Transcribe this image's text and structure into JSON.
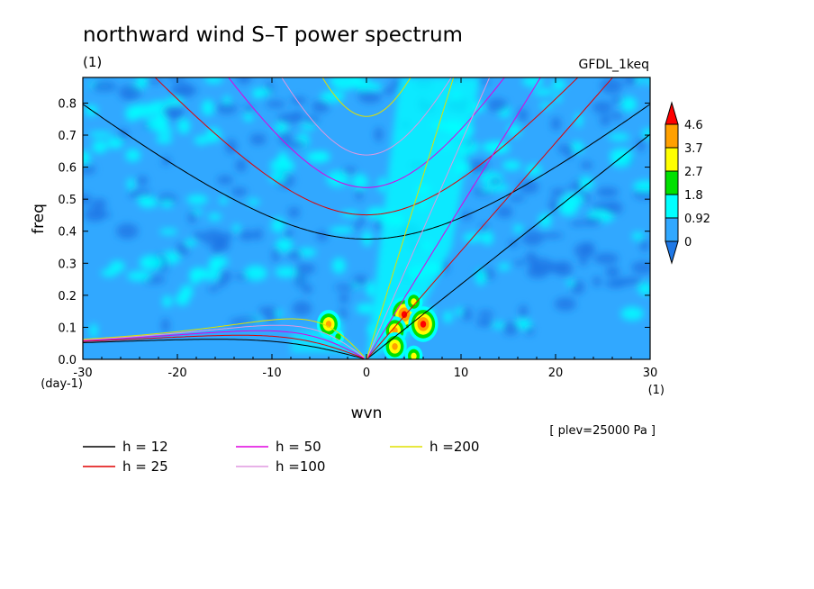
{
  "chart_data": {
    "type": "heatmap",
    "title": "northward wind S–T power spectrum",
    "subtitle_left": "(1)",
    "subtitle_right": "GFDL_1keq",
    "xlabel": "wvn",
    "ylabel": "freq",
    "x_unit_label": "(1)",
    "y_unit_label": "(day-1)",
    "xlim": [
      -30,
      30
    ],
    "ylim": [
      0,
      0.88
    ],
    "x_ticks": [
      -30,
      -20,
      -10,
      0,
      10,
      20,
      30
    ],
    "x_tick_labels": [
      "-30",
      "-20",
      "-10",
      "0",
      "10",
      "20",
      "30"
    ],
    "y_ticks": [
      0,
      0.1,
      0.2,
      0.3,
      0.4,
      0.5,
      0.6,
      0.7,
      0.8
    ],
    "y_tick_labels": [
      "0.0",
      "0.1",
      "0.2",
      "0.3",
      "0.4",
      "0.5",
      "0.6",
      "0.7",
      "0.8"
    ],
    "colorbar": {
      "levels": [
        "0",
        "0.92",
        "1.8",
        "2.7",
        "3.7",
        "4.6"
      ],
      "colors": [
        "#1f78e6",
        "#31a8ff",
        "#00ffff",
        "#00e000",
        "#ffff00",
        "#ffa000",
        "#ff0000"
      ]
    },
    "annotation": "[ plev=25000 Pa ]",
    "dispersion_curves": [
      {
        "label": "h = 12",
        "h": 12,
        "color": "#000000"
      },
      {
        "label": "h = 25",
        "h": 25,
        "color": "#e00000"
      },
      {
        "label": "h = 50",
        "h": 50,
        "color": "#e000e0"
      },
      {
        "label": "h =100",
        "h": 100,
        "color": "#e098e0"
      },
      {
        "label": "h =200",
        "h": 200,
        "color": "#e0e000"
      }
    ],
    "power_peaks": [
      {
        "wvn": 4,
        "freq": 0.14,
        "level": 4.6
      },
      {
        "wvn": 6,
        "freq": 0.11,
        "level": 4.6
      },
      {
        "wvn": 3,
        "freq": 0.09,
        "level": 3.7
      },
      {
        "wvn": 3,
        "freq": 0.04,
        "level": 3.7
      },
      {
        "wvn": -4,
        "freq": 0.11,
        "level": 3.7
      },
      {
        "wvn": 5,
        "freq": 0.18,
        "level": 2.7
      },
      {
        "wvn": -3,
        "freq": 0.07,
        "level": 1.8
      },
      {
        "wvn": 5,
        "freq": 0.01,
        "level": 2.7
      }
    ]
  }
}
